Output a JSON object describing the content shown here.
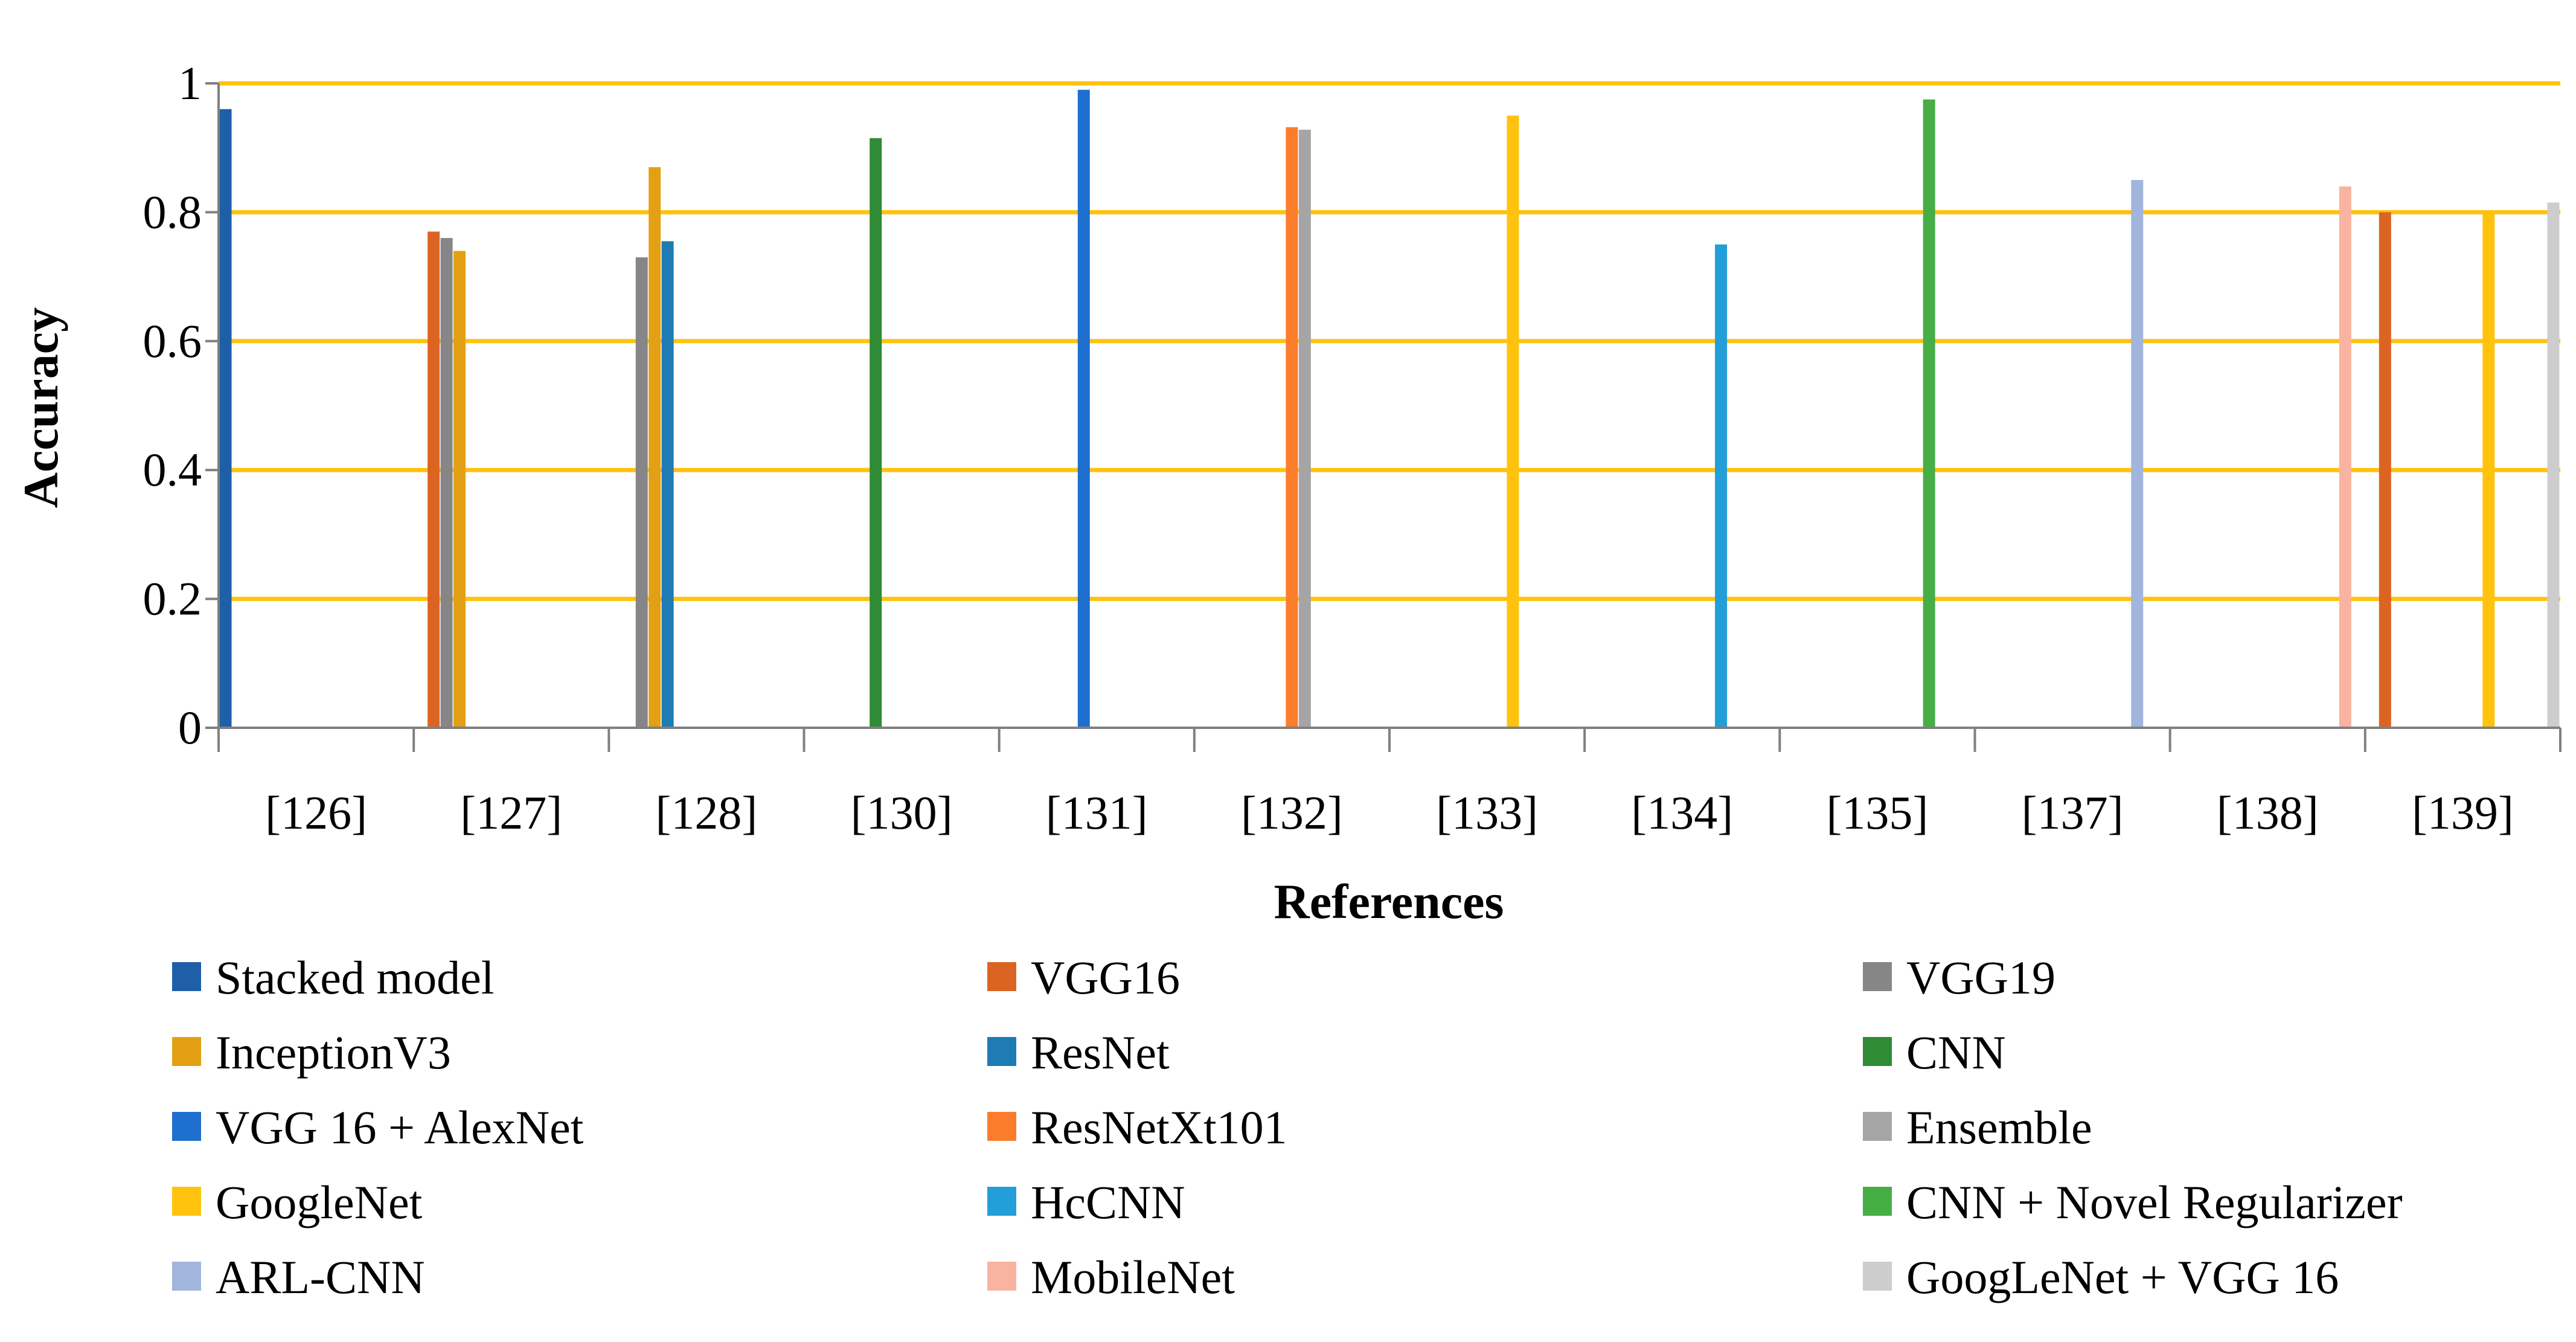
{
  "chart_data": {
    "type": "bar",
    "title": "",
    "xlabel": "References",
    "ylabel": "Accuracy",
    "ylim": [
      0,
      1
    ],
    "yticks": [
      "0",
      "0.2",
      "0.4",
      "0.6",
      "0.8",
      "1"
    ],
    "grid": true,
    "legend_position": "bottom",
    "categories": [
      "[126]",
      "[127]",
      "[128]",
      "[130]",
      "[131]",
      "[132]",
      "[133]",
      "[134]",
      "[135]",
      "[137]",
      "[138]",
      "[139]"
    ],
    "series": [
      {
        "name": "Stacked model",
        "color": "#1F5FA8",
        "values": [
          0.96,
          null,
          null,
          null,
          null,
          null,
          null,
          null,
          null,
          null,
          null,
          null
        ]
      },
      {
        "name": "VGG16",
        "color": "#DC6422",
        "values": [
          null,
          0.77,
          null,
          null,
          null,
          null,
          null,
          null,
          null,
          null,
          null,
          0.8
        ]
      },
      {
        "name": "VGG19",
        "color": "#868686",
        "values": [
          null,
          0.76,
          0.73,
          null,
          null,
          null,
          null,
          null,
          null,
          null,
          null,
          null
        ]
      },
      {
        "name": "InceptionV3",
        "color": "#E3A014",
        "values": [
          null,
          0.74,
          0.87,
          null,
          null,
          null,
          null,
          null,
          null,
          null,
          null,
          null
        ]
      },
      {
        "name": "ResNet",
        "color": "#1E7BB4",
        "values": [
          null,
          null,
          0.755,
          null,
          null,
          null,
          null,
          null,
          null,
          null,
          null,
          null
        ]
      },
      {
        "name": "CNN",
        "color": "#2F8B35",
        "values": [
          null,
          null,
          null,
          0.915,
          null,
          null,
          null,
          null,
          null,
          null,
          null,
          null
        ]
      },
      {
        "name": "VGG 16 + AlexNet",
        "color": "#1E6FCE",
        "values": [
          null,
          null,
          null,
          null,
          0.99,
          null,
          null,
          null,
          null,
          null,
          null,
          null
        ]
      },
      {
        "name": "ResNetXt101",
        "color": "#FB7D2C",
        "values": [
          null,
          null,
          null,
          null,
          null,
          0.932,
          null,
          null,
          null,
          null,
          null,
          null
        ]
      },
      {
        "name": "Ensemble",
        "color": "#A5A5A5",
        "values": [
          null,
          null,
          null,
          null,
          null,
          0.928,
          null,
          null,
          null,
          null,
          null,
          null
        ]
      },
      {
        "name": "GoogleNet",
        "color": "#FFC20E",
        "values": [
          null,
          null,
          null,
          null,
          null,
          null,
          0.95,
          null,
          null,
          null,
          null,
          0.8
        ]
      },
      {
        "name": "HcCNN",
        "color": "#229FD9",
        "values": [
          null,
          null,
          null,
          null,
          null,
          null,
          null,
          0.75,
          null,
          null,
          null,
          null
        ]
      },
      {
        "name": "CNN + Novel Regularizer",
        "color": "#46AE45",
        "values": [
          null,
          null,
          null,
          null,
          null,
          null,
          null,
          null,
          0.975,
          null,
          null,
          null
        ]
      },
      {
        "name": "ARL-CNN",
        "color": "#A2B5DC",
        "values": [
          null,
          null,
          null,
          null,
          null,
          null,
          null,
          null,
          null,
          0.85,
          null,
          null
        ]
      },
      {
        "name": "MobileNet",
        "color": "#F9B3A1",
        "values": [
          null,
          null,
          null,
          null,
          null,
          null,
          null,
          null,
          null,
          null,
          0.84,
          null
        ]
      },
      {
        "name": "GoogLeNet + VGG 16",
        "color": "#CDCDCD",
        "values": [
          null,
          null,
          null,
          null,
          null,
          null,
          null,
          null,
          null,
          null,
          null,
          0.815
        ]
      }
    ],
    "colors": {
      "gridline": "#FFC20E",
      "axis": "#808080"
    }
  }
}
